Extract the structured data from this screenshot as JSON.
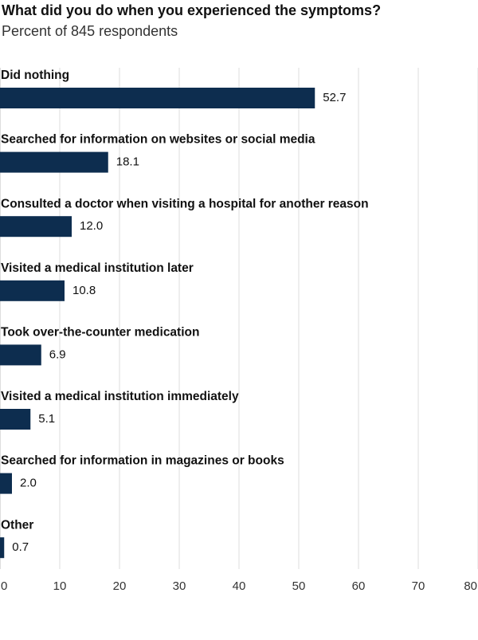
{
  "chart_data": {
    "type": "hbar",
    "title": "What did you do when you experienced the symptoms?",
    "subtitle": "Percent of 845 respondents",
    "categories": [
      "Did nothing",
      "Searched for information on websites or social media",
      "Consulted a doctor when visiting a hospital for another reason",
      "Visited a medical institution later",
      "Took over-the-counter medication",
      "Visited a medical institution immediately",
      "Searched for information in magazines or books",
      "Other"
    ],
    "values": [
      52.7,
      18.1,
      12.0,
      10.8,
      6.9,
      5.1,
      2.0,
      0.7
    ],
    "value_labels": [
      "52.7",
      "18.1",
      "12.0",
      "10.8",
      "6.9",
      "5.1",
      "2.0",
      "0.7"
    ],
    "color": "#0d2d4f",
    "xlim": [
      0,
      80
    ],
    "xticks": [
      0,
      10,
      20,
      30,
      40,
      50,
      60,
      70,
      80
    ],
    "grid": true
  }
}
